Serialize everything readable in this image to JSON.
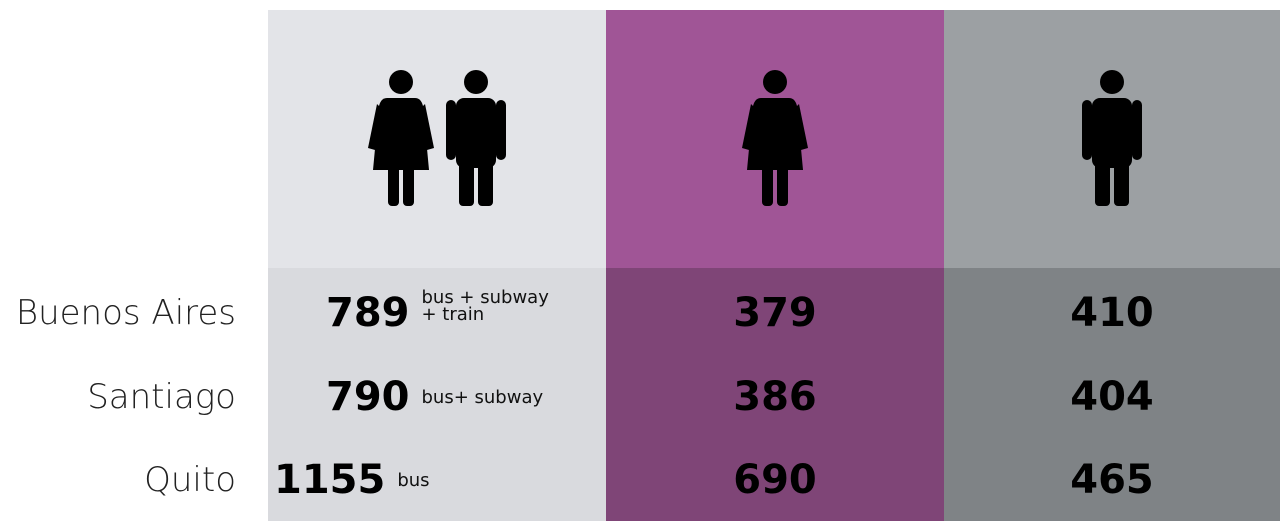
{
  "table": {
    "rows": [
      {
        "city": "Buenos Aires",
        "total": "789",
        "modes": [
          "bus + subway",
          "+ train"
        ],
        "women": "379",
        "men": "410"
      },
      {
        "city": "Santiago",
        "total": "790",
        "modes": [
          "bus+ subway"
        ],
        "women": "386",
        "men": "404"
      },
      {
        "city": "Quito",
        "total": "1155",
        "modes": [
          "bus"
        ],
        "women": "690",
        "men": "465"
      }
    ]
  }
}
